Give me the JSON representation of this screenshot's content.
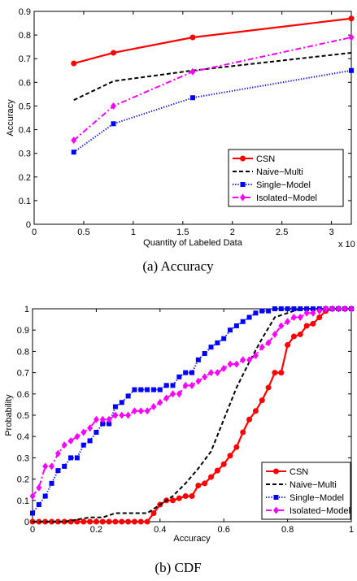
{
  "chart_data": [
    {
      "type": "line",
      "caption": "(a)  Accuracy",
      "xlabel": "Quantity of Labeled Data",
      "ylabel": "Accuracy",
      "x_multiplier": "x 10",
      "x_multiplier_exp": "4",
      "xlim": [
        0,
        3.2
      ],
      "ylim": [
        0,
        0.9
      ],
      "xticks": [
        0,
        0.5,
        1,
        1.5,
        2,
        2.5,
        3
      ],
      "xtick_labels": [
        "0",
        "0.5",
        "1",
        "1.5",
        "2",
        "2.5",
        "3"
      ],
      "yticks": [
        0,
        0.1,
        0.2,
        0.3,
        0.4,
        0.5,
        0.6,
        0.7,
        0.8,
        0.9
      ],
      "ytick_labels": [
        "0",
        "0.1",
        "0.2",
        "0.3",
        "0.4",
        "0.5",
        "0.6",
        "0.7",
        "0.8",
        "0.9"
      ],
      "grid": false,
      "legend_position": "lower-right",
      "series": [
        {
          "name": "CSN",
          "color": "#ff0000",
          "style": "solid",
          "marker": "circle",
          "x": [
            0.4,
            0.8,
            1.6,
            3.2
          ],
          "y": [
            0.68,
            0.725,
            0.79,
            0.87
          ]
        },
        {
          "name": "Naive−Multi",
          "color": "#000000",
          "style": "dashed",
          "marker": "none",
          "x": [
            0.4,
            0.8,
            1.6,
            3.2
          ],
          "y": [
            0.525,
            0.605,
            0.65,
            0.725
          ]
        },
        {
          "name": "Single−Model",
          "color": "#0000ff",
          "style": "dotted",
          "marker": "square",
          "x": [
            0.4,
            0.8,
            1.6,
            3.2
          ],
          "y": [
            0.305,
            0.425,
            0.535,
            0.65
          ]
        },
        {
          "name": "Isolated−Model",
          "color": "#ff00ff",
          "style": "dashdot",
          "marker": "diamond",
          "x": [
            0.4,
            0.8,
            1.6,
            3.2
          ],
          "y": [
            0.355,
            0.5,
            0.645,
            0.79
          ]
        }
      ]
    },
    {
      "type": "line",
      "caption": "(b)  CDF",
      "xlabel": "Accuracy",
      "ylabel": "Probability",
      "xlim": [
        0,
        1
      ],
      "ylim": [
        0,
        1
      ],
      "xticks": [
        0,
        0.2,
        0.4,
        0.6,
        0.8,
        1
      ],
      "xtick_labels": [
        "0",
        "0.2",
        "0.4",
        "0.6",
        "0.8",
        "1"
      ],
      "yticks": [
        0,
        0.1,
        0.2,
        0.3,
        0.4,
        0.5,
        0.6,
        0.7,
        0.8,
        0.9,
        1
      ],
      "ytick_labels": [
        "0",
        "0.1",
        "0.2",
        "0.3",
        "0.4",
        "0.5",
        "0.6",
        "0.7",
        "0.8",
        "0.9",
        "1"
      ],
      "grid": false,
      "legend_position": "lower-right",
      "series": [
        {
          "name": "CSN",
          "color": "#ff0000",
          "style": "solid",
          "marker": "circle",
          "x": [
            0,
            0.02,
            0.04,
            0.06,
            0.08,
            0.1,
            0.12,
            0.14,
            0.16,
            0.18,
            0.2,
            0.22,
            0.24,
            0.26,
            0.28,
            0.3,
            0.32,
            0.34,
            0.36,
            0.38,
            0.4,
            0.42,
            0.44,
            0.46,
            0.48,
            0.5,
            0.52,
            0.54,
            0.56,
            0.58,
            0.6,
            0.62,
            0.64,
            0.66,
            0.68,
            0.7,
            0.72,
            0.74,
            0.76,
            0.78,
            0.8,
            0.82,
            0.84,
            0.86,
            0.88,
            0.9,
            0.92,
            0.94,
            0.96,
            0.98,
            1
          ],
          "y": [
            0,
            0,
            0,
            0,
            0,
            0,
            0,
            0,
            0,
            0,
            0,
            0,
            0,
            0,
            0,
            0,
            0,
            0,
            0,
            0.04,
            0.08,
            0.1,
            0.1,
            0.11,
            0.12,
            0.12,
            0.17,
            0.18,
            0.21,
            0.24,
            0.27,
            0.31,
            0.35,
            0.42,
            0.48,
            0.52,
            0.57,
            0.63,
            0.7,
            0.7,
            0.83,
            0.87,
            0.88,
            0.92,
            0.93,
            0.96,
            0.99,
            1,
            1,
            1,
            1
          ]
        },
        {
          "name": "Naive−Multi",
          "color": "#000000",
          "style": "dashed",
          "marker": "none",
          "x": [
            0,
            0.1,
            0.18,
            0.22,
            0.26,
            0.36,
            0.4,
            0.44,
            0.48,
            0.52,
            0.56,
            0.6,
            0.64,
            0.68,
            0.72,
            0.76,
            0.8,
            0.84,
            0.88,
            0.92,
            1
          ],
          "y": [
            0,
            0,
            0.02,
            0.02,
            0.04,
            0.04,
            0.08,
            0.12,
            0.18,
            0.25,
            0.33,
            0.48,
            0.63,
            0.75,
            0.86,
            0.96,
            0.98,
            1,
            1,
            1,
            1
          ]
        },
        {
          "name": "Single−Model",
          "color": "#0000ff",
          "style": "dotted",
          "marker": "square",
          "x": [
            0,
            0.02,
            0.04,
            0.06,
            0.08,
            0.1,
            0.12,
            0.14,
            0.16,
            0.18,
            0.2,
            0.22,
            0.24,
            0.26,
            0.28,
            0.3,
            0.32,
            0.34,
            0.36,
            0.38,
            0.4,
            0.42,
            0.44,
            0.46,
            0.48,
            0.5,
            0.52,
            0.54,
            0.56,
            0.58,
            0.6,
            0.62,
            0.64,
            0.66,
            0.68,
            0.7,
            0.72,
            0.74,
            0.76,
            0.78,
            0.8,
            0.82,
            0.84,
            0.86,
            0.88,
            0.9,
            0.92,
            0.94,
            0.96,
            0.98,
            1
          ],
          "y": [
            0.04,
            0.08,
            0.12,
            0.18,
            0.24,
            0.26,
            0.3,
            0.3,
            0.36,
            0.38,
            0.42,
            0.46,
            0.46,
            0.54,
            0.56,
            0.59,
            0.62,
            0.62,
            0.62,
            0.62,
            0.62,
            0.64,
            0.64,
            0.68,
            0.7,
            0.7,
            0.76,
            0.79,
            0.82,
            0.84,
            0.86,
            0.9,
            0.92,
            0.94,
            0.96,
            0.98,
            0.99,
            0.99,
            1,
            1,
            1,
            1,
            1,
            1,
            1,
            1,
            1,
            1,
            1,
            1,
            1
          ]
        },
        {
          "name": "Isolated−Model",
          "color": "#ff00ff",
          "style": "dashdot",
          "marker": "diamond",
          "x": [
            0,
            0.02,
            0.04,
            0.06,
            0.08,
            0.1,
            0.12,
            0.14,
            0.16,
            0.18,
            0.2,
            0.22,
            0.24,
            0.26,
            0.28,
            0.3,
            0.32,
            0.34,
            0.36,
            0.38,
            0.4,
            0.42,
            0.44,
            0.46,
            0.48,
            0.5,
            0.52,
            0.54,
            0.56,
            0.58,
            0.6,
            0.62,
            0.64,
            0.66,
            0.68,
            0.7,
            0.72,
            0.74,
            0.76,
            0.78,
            0.8,
            0.82,
            0.84,
            0.86,
            0.88,
            0.9,
            0.92,
            0.94,
            0.96,
            0.98,
            1
          ],
          "y": [
            0.12,
            0.16,
            0.26,
            0.26,
            0.32,
            0.36,
            0.38,
            0.4,
            0.42,
            0.44,
            0.48,
            0.48,
            0.48,
            0.5,
            0.5,
            0.5,
            0.52,
            0.52,
            0.52,
            0.54,
            0.56,
            0.58,
            0.6,
            0.6,
            0.64,
            0.64,
            0.66,
            0.68,
            0.7,
            0.7,
            0.72,
            0.74,
            0.74,
            0.76,
            0.76,
            0.78,
            0.82,
            0.84,
            0.88,
            0.92,
            0.94,
            0.96,
            0.96,
            0.98,
            0.98,
            0.99,
            1,
            1,
            1,
            1,
            1
          ]
        }
      ]
    }
  ]
}
